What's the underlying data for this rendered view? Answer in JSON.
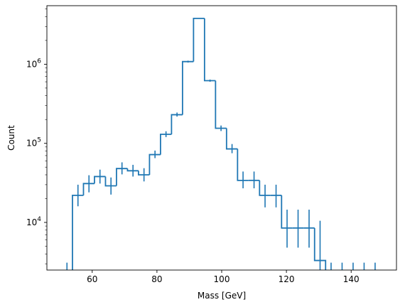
{
  "chart_data": {
    "type": "histogram",
    "title": "",
    "xlabel": "Mass [GeV]",
    "ylabel": "Count",
    "xlim": [
      46,
      154
    ],
    "ylim": [
      2500,
      5500000
    ],
    "y_scale": "log",
    "grid": false,
    "color": "#1f77b4",
    "x_ticks": [
      {
        "value": 60,
        "label": "60"
      },
      {
        "value": 80,
        "label": "80"
      },
      {
        "value": 100,
        "label": "100"
      },
      {
        "value": 120,
        "label": "120"
      },
      {
        "value": 140,
        "label": "140"
      }
    ],
    "y_ticks": [
      {
        "value": 10000,
        "base": "10",
        "exp": "4"
      },
      {
        "value": 100000,
        "base": "10",
        "exp": "5"
      },
      {
        "value": 1000000,
        "base": "10",
        "exp": "6"
      }
    ],
    "bin_edges": [
      50.5,
      53.9,
      57.3,
      60.7,
      64.1,
      67.5,
      70.9,
      74.3,
      77.7,
      81.1,
      84.5,
      87.9,
      91.3,
      94.7,
      98.1,
      101.5,
      104.9,
      108.3,
      111.7,
      115.1,
      118.5,
      121.9,
      125.3,
      128.7,
      132.1,
      135.5,
      138.9,
      142.3,
      145.7,
      149.1
    ],
    "counts": [
      0,
      22000,
      31000,
      38000,
      29000,
      48000,
      45000,
      40000,
      72000,
      130000,
      230000,
      1080000,
      3800000,
      620000,
      155000,
      85000,
      34000,
      34000,
      22000,
      22000,
      8500,
      8500,
      8500,
      3300,
      0,
      0,
      0,
      0,
      0
    ],
    "err_low": [
      null,
      16000,
      24000,
      31000,
      22500,
      40500,
      38000,
      33000,
      65000,
      120000,
      218000,
      1050000,
      3750000,
      600000,
      143000,
      75000,
      27000,
      27000,
      15500,
      15500,
      4800,
      4800,
      4800,
      null,
      null,
      null,
      null,
      null,
      null
    ],
    "err_high": [
      3100,
      30000,
      39500,
      46500,
      37000,
      57500,
      53500,
      48500,
      81000,
      142000,
      245000,
      1110000,
      3850000,
      640000,
      168000,
      98000,
      44000,
      44000,
      30000,
      30000,
      14500,
      14500,
      14500,
      10500,
      3100,
      3100,
      3100,
      3100,
      3100
    ]
  }
}
